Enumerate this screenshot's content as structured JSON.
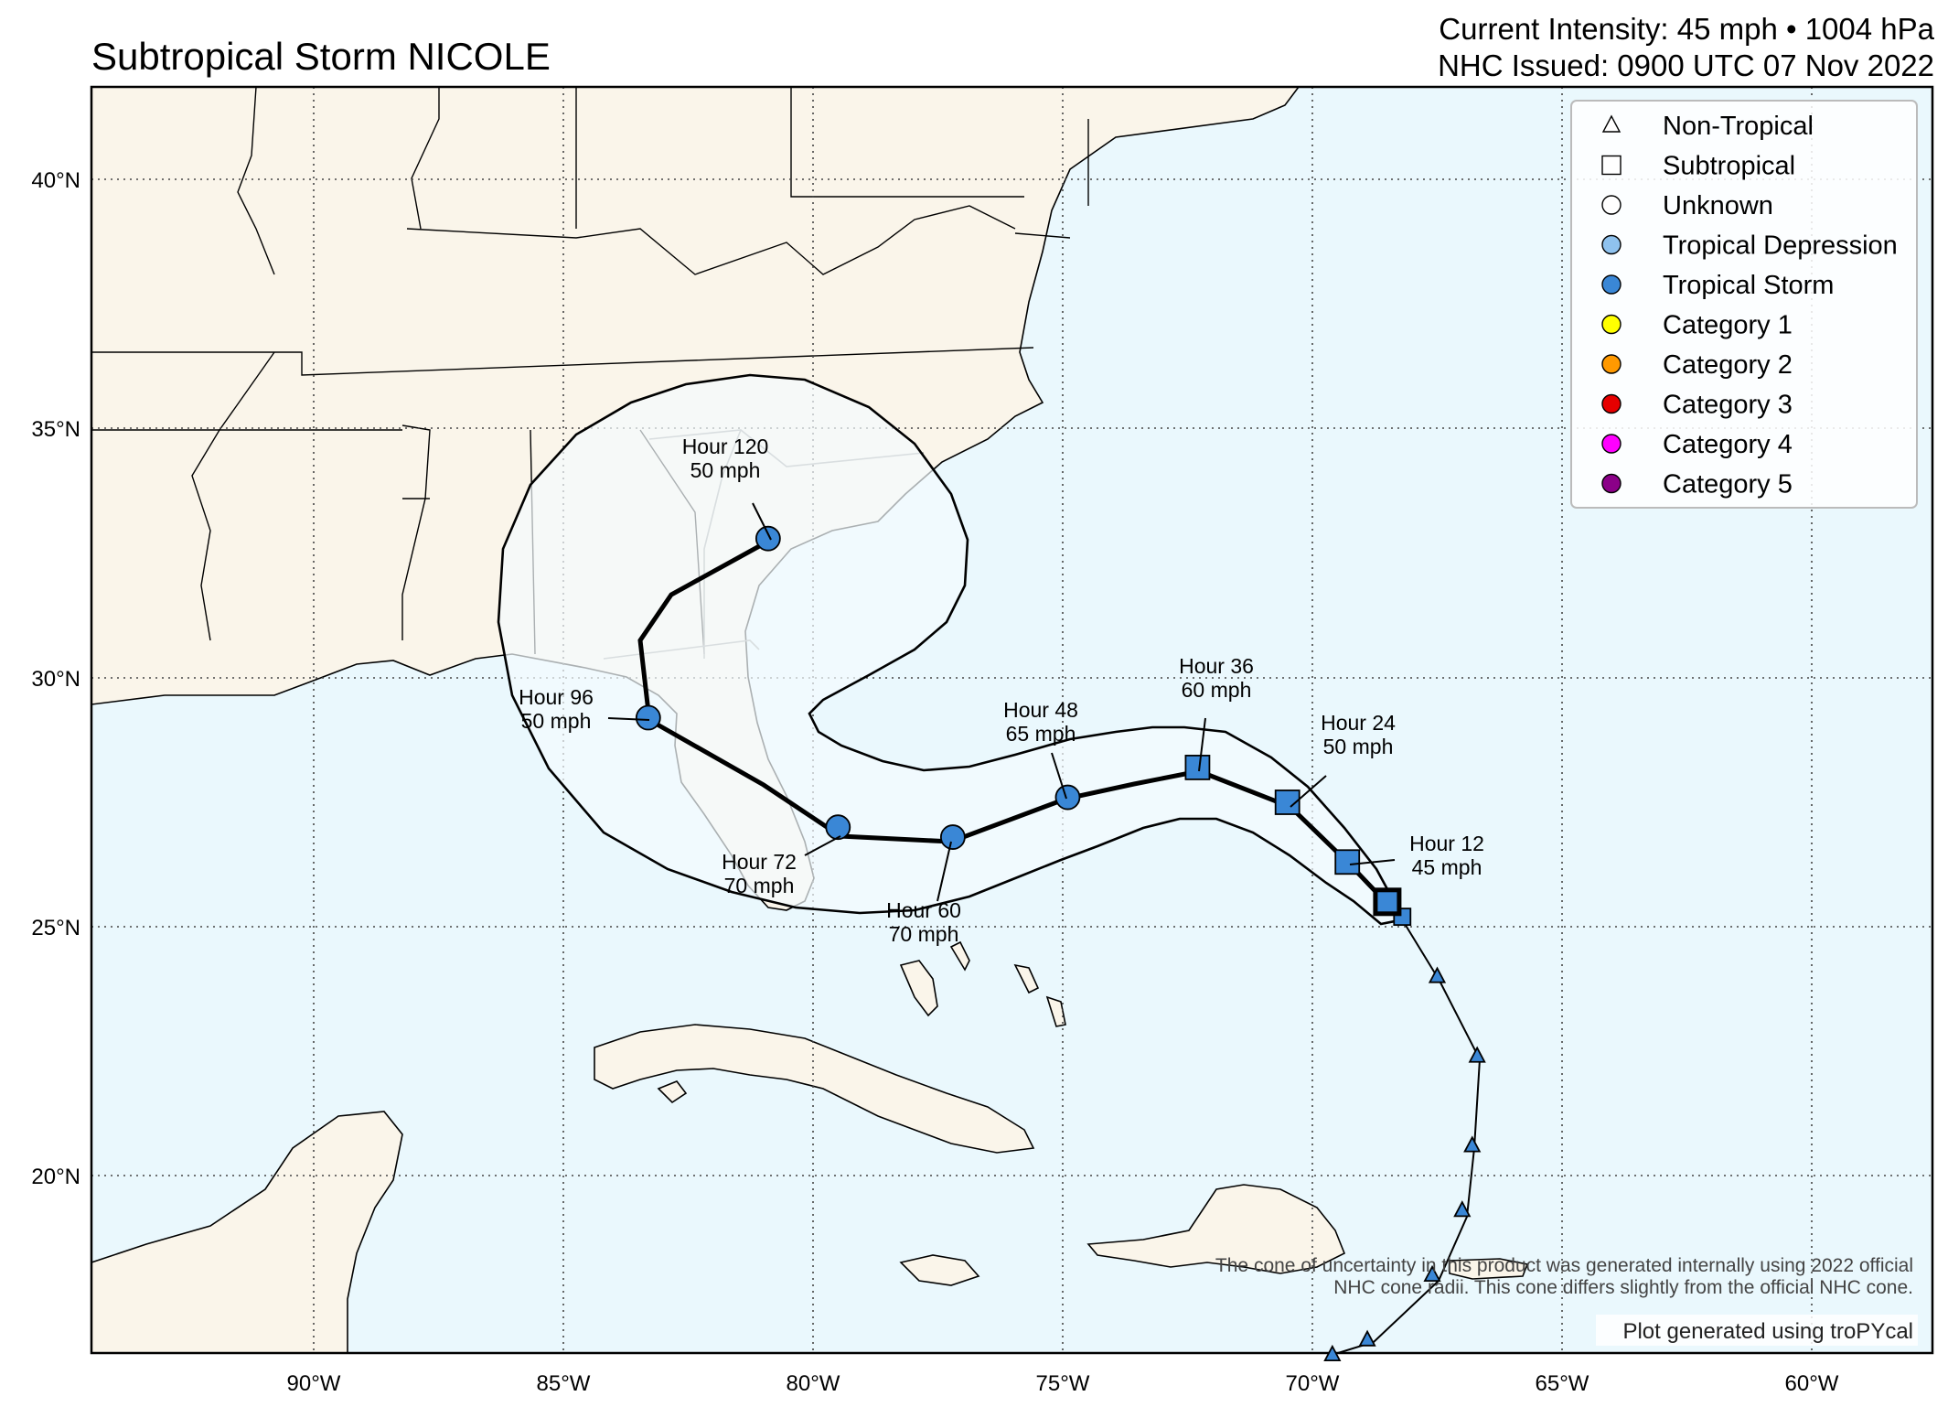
{
  "title": "Subtropical Storm NICOLE",
  "header": {
    "intensity": "Current Intensity: 45 mph • 1004 hPa",
    "issued": "NHC Issued: 0900 UTC 07 Nov 2022"
  },
  "axes": {
    "lon_ticks": [
      "90°W",
      "85°W",
      "80°W",
      "75°W",
      "70°W",
      "65°W",
      "60°W"
    ],
    "lat_ticks": [
      "40°N",
      "35°N",
      "30°N",
      "25°N",
      "20°N"
    ]
  },
  "legend": [
    {
      "label": "Non-Tropical",
      "shape": "triangle",
      "color": "#ffffff"
    },
    {
      "label": "Subtropical",
      "shape": "square",
      "color": "#ffffff"
    },
    {
      "label": "Unknown",
      "shape": "circle",
      "color": "#ffffff"
    },
    {
      "label": "Tropical Depression",
      "shape": "circle",
      "color": "#8fc2ee"
    },
    {
      "label": "Tropical Storm",
      "shape": "circle",
      "color": "#3a87d6"
    },
    {
      "label": "Category 1",
      "shape": "circle",
      "color": "#ffff00"
    },
    {
      "label": "Category 2",
      "shape": "circle",
      "color": "#ff9900"
    },
    {
      "label": "Category 3",
      "shape": "circle",
      "color": "#e60000"
    },
    {
      "label": "Category 4",
      "shape": "circle",
      "color": "#ff00ff"
    },
    {
      "label": "Category 5",
      "shape": "circle",
      "color": "#8b0088"
    }
  ],
  "forecast": [
    {
      "hour": "Hour 12",
      "wind": "45 mph",
      "lon": -69.3,
      "lat": 26.3,
      "type": "Subtropical"
    },
    {
      "hour": "Hour 24",
      "wind": "50 mph",
      "lon": -70.5,
      "lat": 27.5,
      "type": "Subtropical"
    },
    {
      "hour": "Hour 36",
      "wind": "60 mph",
      "lon": -72.3,
      "lat": 28.2,
      "type": "Subtropical"
    },
    {
      "hour": "Hour 48",
      "wind": "65 mph",
      "lon": -74.9,
      "lat": 27.6,
      "type": "Tropical Storm"
    },
    {
      "hour": "Hour 60",
      "wind": "70 mph",
      "lon": -77.2,
      "lat": 26.8,
      "type": "Tropical Storm"
    },
    {
      "hour": "Hour 72",
      "wind": "70 mph",
      "lon": -79.5,
      "lat": 27.0,
      "type": "Tropical Storm"
    },
    {
      "hour": "Hour 96",
      "wind": "50 mph",
      "lon": -83.3,
      "lat": 29.2,
      "type": "Tropical Storm"
    },
    {
      "hour": "Hour 120",
      "wind": "50 mph",
      "lon": -80.9,
      "lat": 32.8,
      "type": "Tropical Storm"
    }
  ],
  "current_position": {
    "lon": -68.5,
    "lat": 25.5,
    "type": "Subtropical"
  },
  "past_track": [
    {
      "lon": -69.6,
      "lat": 16.4,
      "type": "Non-Tropical"
    },
    {
      "lon": -68.9,
      "lat": 16.7,
      "type": "Non-Tropical"
    },
    {
      "lon": -67.6,
      "lat": 18.0,
      "type": "Non-Tropical"
    },
    {
      "lon": -67.0,
      "lat": 19.3,
      "type": "Non-Tropical"
    },
    {
      "lon": -66.8,
      "lat": 20.6,
      "type": "Non-Tropical"
    },
    {
      "lon": -66.7,
      "lat": 22.4,
      "type": "Non-Tropical"
    },
    {
      "lon": -67.5,
      "lat": 24.0,
      "type": "Non-Tropical"
    },
    {
      "lon": -68.2,
      "lat": 25.2,
      "type": "Subtropical"
    }
  ],
  "notes": {
    "cone_line1": "The cone of uncertainty in this product was generated internally using 2022 official",
    "cone_line2": "NHC cone radii. This cone differs slightly from the official NHC cone.",
    "credit": "Plot generated using troPYcal"
  },
  "colors": {
    "ocean": "#eaf8fd",
    "land": "#faf5ea",
    "cone": "#f4fbfe",
    "subtropical": "#3a87d6",
    "tropical_storm": "#3a87d6",
    "non_tropical": "#3a87d6"
  }
}
